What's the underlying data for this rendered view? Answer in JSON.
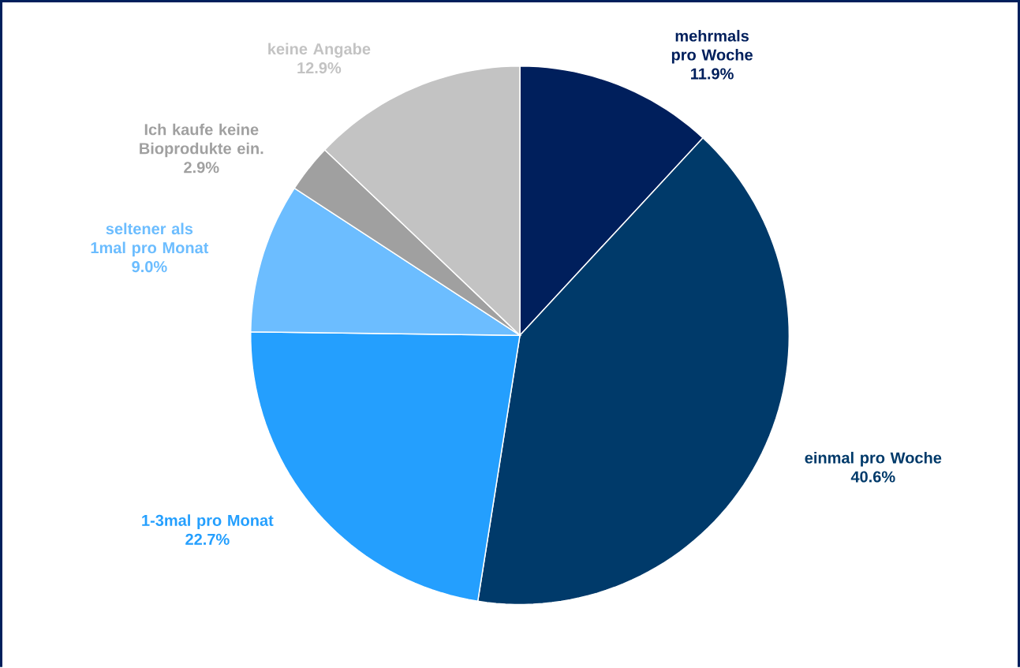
{
  "chart_data": {
    "type": "pie",
    "categories": [
      "mehrmals pro Woche",
      "einmal pro Woche",
      "1-3mal pro Monat",
      "seltener als 1mal pro Monat",
      "Ich kaufe keine Bioprodukte ein.",
      "keine Angabe"
    ],
    "values": [
      11.9,
      40.6,
      22.7,
      9.0,
      2.9,
      12.9
    ],
    "colors": [
      "#001f5c",
      "#003a6a",
      "#249ffe",
      "#6cbdff",
      "#a0a0a0",
      "#c3c3c3"
    ],
    "value_labels": [
      "11.9%",
      "40.6%",
      "22.7%",
      "9.0%",
      "2.9%",
      "12.9%"
    ]
  }
}
